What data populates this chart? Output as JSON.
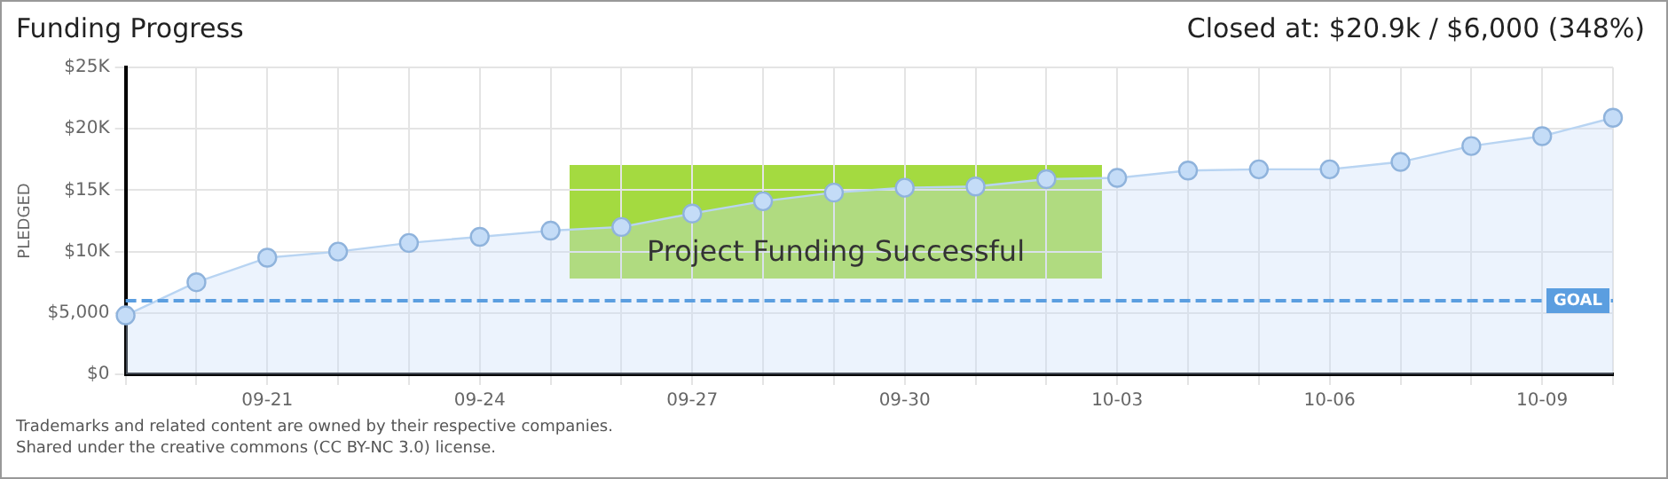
{
  "chart_data": {
    "type": "area",
    "title": "Funding Progress",
    "subtitle": "Closed at: $20.9k / $6,000 (348%)",
    "ylabel": "PLEDGED",
    "categories": [
      null,
      null,
      "09-21",
      null,
      null,
      "09-24",
      null,
      null,
      "09-27",
      null,
      null,
      "09-30",
      null,
      null,
      "10-03",
      null,
      null,
      "10-06",
      null,
      null,
      "10-09",
      null
    ],
    "series": [
      {
        "color": "#b8d4f2",
        "values": [
          4800,
          7500,
          9500,
          10000,
          10700,
          11200,
          11700,
          12000,
          13100,
          14100,
          14800,
          15200,
          15300,
          15900,
          16000,
          16600,
          16700,
          16700,
          17300,
          18600,
          19400,
          20900
        ]
      }
    ],
    "ylim": [
      0,
      25000
    ],
    "yticks": [
      {
        "value": 0,
        "label": "$0"
      },
      {
        "value": 5000,
        "label": "$5,000"
      },
      {
        "value": 10000,
        "label": "$10K"
      },
      {
        "value": 15000,
        "label": "$15K"
      },
      {
        "value": 20000,
        "label": "$20K"
      },
      {
        "value": 25000,
        "label": "$25K"
      }
    ],
    "ref_lines": [
      {
        "axis": "y",
        "value": 6000,
        "label": "GOAL",
        "color": "#5b9ee0",
        "line_style": "dashed"
      }
    ],
    "annotations": [
      "Project Funding Successful",
      "Trademarks and related content are owned by their respective companies.",
      "Shared under the creative commons (CC BY-NC 3.0) license."
    ],
    "grid": true,
    "legend": false,
    "marker": "circle",
    "line_style": "solid"
  }
}
